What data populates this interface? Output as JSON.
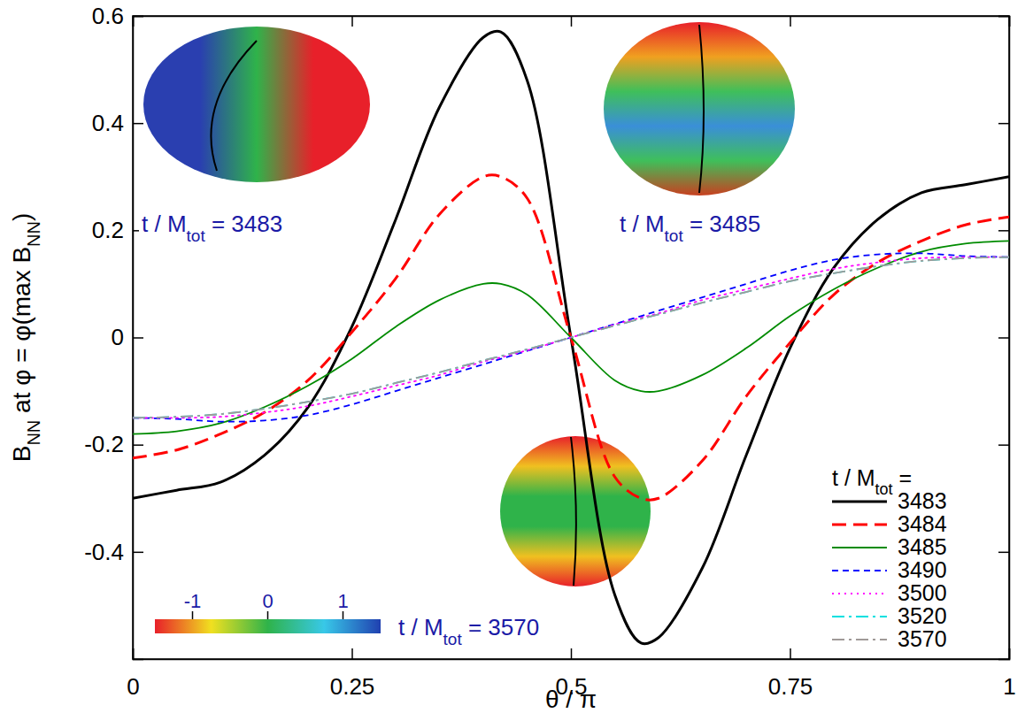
{
  "chart_data": {
    "type": "line",
    "x_label": [
      {
        "text": "θ / π"
      }
    ],
    "y_label": [
      {
        "text": "B"
      },
      {
        "text": "NN",
        "sub": true
      },
      {
        "text": " at φ = φ(max B"
      },
      {
        "text": "NN",
        "sub": true
      },
      {
        "text": ")"
      }
    ],
    "x": [
      0,
      0.05,
      0.1,
      0.15,
      0.2,
      0.25,
      0.3,
      0.35,
      0.4,
      0.42,
      0.45,
      0.5,
      0.55,
      0.58,
      0.6,
      0.65,
      0.7,
      0.75,
      0.8,
      0.85,
      0.9,
      0.95,
      1
    ],
    "xlim": [
      0,
      1
    ],
    "ylim": [
      -0.6,
      0.6
    ],
    "xticks": [
      0,
      0.25,
      0.5,
      0.75,
      1
    ],
    "yticks": [
      -0.4,
      -0.2,
      0,
      0.2,
      0.4,
      0.6
    ],
    "legend": "bottom-right",
    "legend_title": [
      {
        "text": "t / M"
      },
      {
        "text": "tot",
        "sub": true
      },
      {
        "text": " ="
      }
    ],
    "series": [
      {
        "name": "3483",
        "color": "#000000",
        "line_style": "solid",
        "values": [
          -0.3,
          -0.285,
          -0.27,
          -0.22,
          -0.13,
          0.02,
          0.22,
          0.43,
          0.56,
          0.57,
          0.48,
          0,
          -0.48,
          -0.57,
          -0.56,
          -0.43,
          -0.22,
          -0.02,
          0.13,
          0.22,
          0.27,
          0.285,
          0.3
        ]
      },
      {
        "name": "3484",
        "color": "#ff0000",
        "line_style": "long-dashed",
        "values": [
          -0.225,
          -0.21,
          -0.18,
          -0.14,
          -0.08,
          0.01,
          0.11,
          0.23,
          0.3,
          0.3,
          0.26,
          0,
          -0.26,
          -0.3,
          -0.3,
          -0.23,
          -0.11,
          -0.01,
          0.08,
          0.14,
          0.18,
          0.21,
          0.225
        ]
      },
      {
        "name": "3485",
        "color": "#008b00",
        "line_style": "solid",
        "values": [
          -0.18,
          -0.175,
          -0.16,
          -0.13,
          -0.09,
          -0.04,
          0.02,
          0.07,
          0.1,
          0.1,
          0.08,
          0,
          -0.08,
          -0.1,
          -0.1,
          -0.07,
          -0.02,
          0.04,
          0.09,
          0.13,
          0.16,
          0.175,
          0.18
        ]
      },
      {
        "name": "3490",
        "color": "#0000ff",
        "line_style": "dashed",
        "values": [
          -0.15,
          -0.152,
          -0.157,
          -0.155,
          -0.145,
          -0.125,
          -0.1,
          -0.075,
          -0.05,
          -0.04,
          -0.025,
          0,
          0.025,
          0.04,
          0.05,
          0.075,
          0.1,
          0.125,
          0.145,
          0.155,
          0.157,
          0.152,
          0.15
        ]
      },
      {
        "name": "3500",
        "color": "#ff00ff",
        "line_style": "dotted",
        "values": [
          -0.15,
          -0.15,
          -0.148,
          -0.14,
          -0.128,
          -0.11,
          -0.09,
          -0.07,
          -0.045,
          -0.037,
          -0.024,
          0,
          0.024,
          0.037,
          0.045,
          0.07,
          0.09,
          0.11,
          0.128,
          0.14,
          0.148,
          0.15,
          0.15
        ]
      },
      {
        "name": "3520",
        "color": "#00e0e0",
        "line_style": "dash-dot",
        "values": [
          -0.15,
          -0.148,
          -0.143,
          -0.133,
          -0.12,
          -0.105,
          -0.085,
          -0.065,
          -0.043,
          -0.035,
          -0.022,
          0,
          0.022,
          0.035,
          0.043,
          0.065,
          0.085,
          0.105,
          0.12,
          0.133,
          0.143,
          0.148,
          0.15
        ]
      },
      {
        "name": "3570",
        "color": "#a09a98",
        "line_style": "dash-dot",
        "values": [
          -0.15,
          -0.148,
          -0.143,
          -0.133,
          -0.12,
          -0.105,
          -0.085,
          -0.065,
          -0.043,
          -0.035,
          -0.022,
          0,
          0.022,
          0.035,
          0.043,
          0.065,
          0.085,
          0.105,
          0.12,
          0.133,
          0.143,
          0.148,
          0.15
        ]
      }
    ],
    "annotations": [
      {
        "parts": [
          {
            "text": "t / M"
          },
          {
            "text": "tot",
            "sub": true
          },
          {
            "text": " = 3483"
          }
        ]
      },
      {
        "parts": [
          {
            "text": "t / M"
          },
          {
            "text": "tot",
            "sub": true
          },
          {
            "text": " = 3485"
          }
        ]
      },
      {
        "parts": [
          {
            "text": "t / M"
          },
          {
            "text": "tot",
            "sub": true
          },
          {
            "text": " = 3570"
          }
        ]
      }
    ],
    "colorbar": {
      "range": [
        -1.5,
        1.5
      ],
      "ticks": [
        -1,
        0,
        1
      ]
    }
  }
}
